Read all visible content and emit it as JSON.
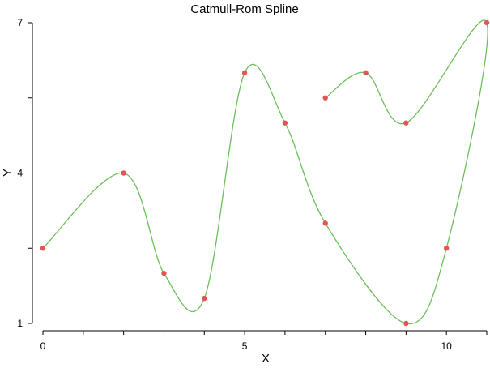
{
  "chart_data": {
    "type": "line",
    "title": "Catmull-Rom Spline",
    "xlabel": "X",
    "ylabel": "Y",
    "xlim": [
      0,
      11
    ],
    "ylim": [
      1,
      7
    ],
    "x_ticks_labeled": [
      0,
      5,
      10
    ],
    "x_ticks_minor": [
      1,
      2,
      3,
      4,
      6,
      7,
      8,
      9,
      11
    ],
    "y_ticks_labeled": [
      1,
      4,
      7
    ],
    "y_ticks_minor": [
      2.5,
      5.5
    ],
    "grid": false,
    "series": [
      {
        "kind": "spline",
        "color": "#6cbf5a",
        "x": [
          0,
          2,
          3,
          4,
          5,
          6,
          7,
          9,
          10,
          11,
          9,
          8,
          7
        ],
        "y": [
          2.5,
          4,
          2,
          1.5,
          6,
          5,
          3,
          1,
          2.5,
          7,
          5,
          6,
          5.5
        ]
      },
      {
        "kind": "points",
        "color": "#e05555",
        "x": [
          0,
          2,
          3,
          4,
          5,
          6,
          7,
          9,
          10,
          11,
          9,
          8,
          7
        ],
        "y": [
          2.5,
          4,
          2,
          1.5,
          6,
          5,
          3,
          1,
          2.5,
          7,
          5,
          6,
          5.5
        ]
      }
    ]
  }
}
